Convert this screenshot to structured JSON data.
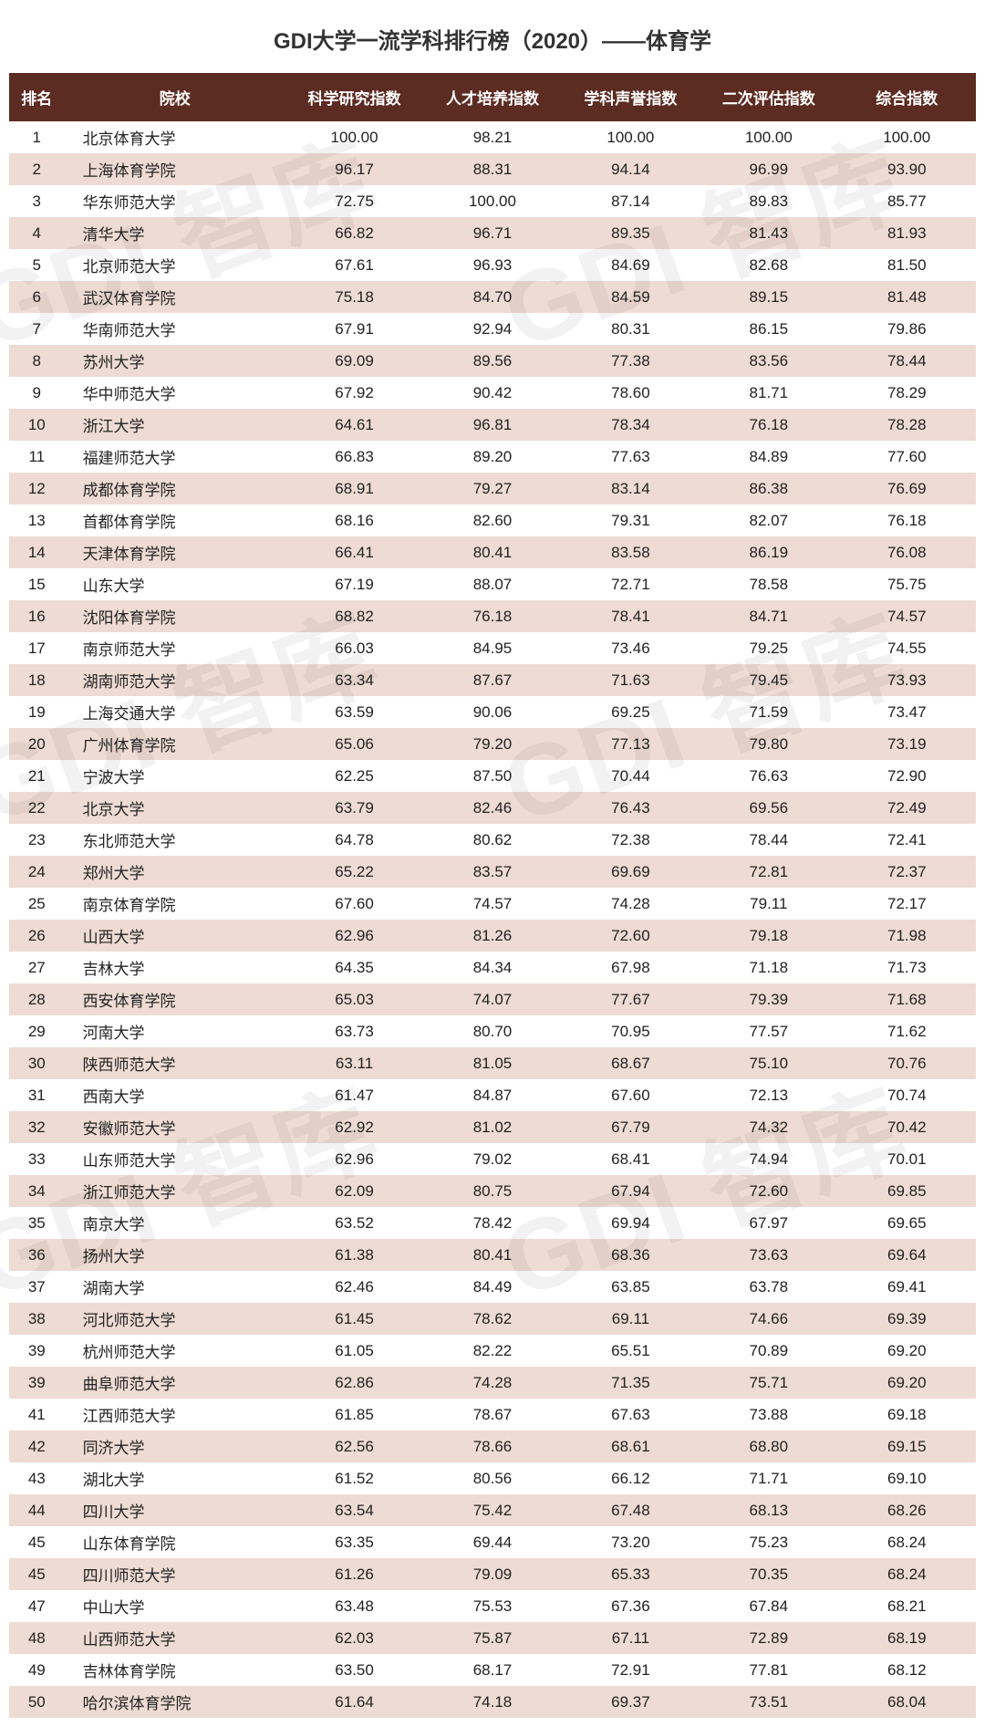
{
  "title": "GDI大学一流学科排行榜（2020）——体育学",
  "watermark_text": "GDI 智库",
  "colors": {
    "header_bg": "#5c2b22",
    "row_even_bg": "#eedbd3",
    "row_odd_bg": "#ffffff"
  },
  "table": {
    "columns": [
      "排名",
      "院校",
      "科学研究指数",
      "人才培养指数",
      "学科声誉指数",
      "二次评估指数",
      "综合指数"
    ],
    "rows": [
      [
        "1",
        "北京体育大学",
        "100.00",
        "98.21",
        "100.00",
        "100.00",
        "100.00"
      ],
      [
        "2",
        "上海体育学院",
        "96.17",
        "88.31",
        "94.14",
        "96.99",
        "93.90"
      ],
      [
        "3",
        "华东师范大学",
        "72.75",
        "100.00",
        "87.14",
        "89.83",
        "85.77"
      ],
      [
        "4",
        "清华大学",
        "66.82",
        "96.71",
        "89.35",
        "81.43",
        "81.93"
      ],
      [
        "5",
        "北京师范大学",
        "67.61",
        "96.93",
        "84.69",
        "82.68",
        "81.50"
      ],
      [
        "6",
        "武汉体育学院",
        "75.18",
        "84.70",
        "84.59",
        "89.15",
        "81.48"
      ],
      [
        "7",
        "华南师范大学",
        "67.91",
        "92.94",
        "80.31",
        "86.15",
        "79.86"
      ],
      [
        "8",
        "苏州大学",
        "69.09",
        "89.56",
        "77.38",
        "83.56",
        "78.44"
      ],
      [
        "9",
        "华中师范大学",
        "67.92",
        "90.42",
        "78.60",
        "81.71",
        "78.29"
      ],
      [
        "10",
        "浙江大学",
        "64.61",
        "96.81",
        "78.34",
        "76.18",
        "78.28"
      ],
      [
        "11",
        "福建师范大学",
        "66.83",
        "89.20",
        "77.63",
        "84.89",
        "77.60"
      ],
      [
        "12",
        "成都体育学院",
        "68.91",
        "79.27",
        "83.14",
        "86.38",
        "76.69"
      ],
      [
        "13",
        "首都体育学院",
        "68.16",
        "82.60",
        "79.31",
        "82.07",
        "76.18"
      ],
      [
        "14",
        "天津体育学院",
        "66.41",
        "80.41",
        "83.58",
        "86.19",
        "76.08"
      ],
      [
        "15",
        "山东大学",
        "67.19",
        "88.07",
        "72.71",
        "78.58",
        "75.75"
      ],
      [
        "16",
        "沈阳体育学院",
        "68.82",
        "76.18",
        "78.41",
        "84.71",
        "74.57"
      ],
      [
        "17",
        "南京师范大学",
        "66.03",
        "84.95",
        "73.46",
        "79.25",
        "74.55"
      ],
      [
        "18",
        "湖南师范大学",
        "63.34",
        "87.67",
        "71.63",
        "79.45",
        "73.93"
      ],
      [
        "19",
        "上海交通大学",
        "63.59",
        "90.06",
        "69.25",
        "71.59",
        "73.47"
      ],
      [
        "20",
        "广州体育学院",
        "65.06",
        "79.20",
        "77.13",
        "79.80",
        "73.19"
      ],
      [
        "21",
        "宁波大学",
        "62.25",
        "87.50",
        "70.44",
        "76.63",
        "72.90"
      ],
      [
        "22",
        "北京大学",
        "63.79",
        "82.46",
        "76.43",
        "69.56",
        "72.49"
      ],
      [
        "23",
        "东北师范大学",
        "64.78",
        "80.62",
        "72.38",
        "78.44",
        "72.41"
      ],
      [
        "24",
        "郑州大学",
        "65.22",
        "83.57",
        "69.69",
        "72.81",
        "72.37"
      ],
      [
        "25",
        "南京体育学院",
        "67.60",
        "74.57",
        "74.28",
        "79.11",
        "72.17"
      ],
      [
        "26",
        "山西大学",
        "62.96",
        "81.26",
        "72.60",
        "79.18",
        "71.98"
      ],
      [
        "27",
        "吉林大学",
        "64.35",
        "84.34",
        "67.98",
        "71.18",
        "71.73"
      ],
      [
        "28",
        "西安体育学院",
        "65.03",
        "74.07",
        "77.67",
        "79.39",
        "71.68"
      ],
      [
        "29",
        "河南大学",
        "63.73",
        "80.70",
        "70.95",
        "77.57",
        "71.62"
      ],
      [
        "30",
        "陕西师范大学",
        "63.11",
        "81.05",
        "68.67",
        "75.10",
        "70.76"
      ],
      [
        "31",
        "西南大学",
        "61.47",
        "84.87",
        "67.60",
        "72.13",
        "70.74"
      ],
      [
        "32",
        "安徽师范大学",
        "62.92",
        "81.02",
        "67.79",
        "74.32",
        "70.42"
      ],
      [
        "33",
        "山东师范大学",
        "62.96",
        "79.02",
        "68.41",
        "74.94",
        "70.01"
      ],
      [
        "34",
        "浙江师范大学",
        "62.09",
        "80.75",
        "67.94",
        "72.60",
        "69.85"
      ],
      [
        "35",
        "南京大学",
        "63.52",
        "78.42",
        "69.94",
        "67.97",
        "69.65"
      ],
      [
        "36",
        "扬州大学",
        "61.38",
        "80.41",
        "68.36",
        "73.63",
        "69.64"
      ],
      [
        "37",
        "湖南大学",
        "62.46",
        "84.49",
        "63.85",
        "63.78",
        "69.41"
      ],
      [
        "38",
        "河北师范大学",
        "61.45",
        "78.62",
        "69.11",
        "74.66",
        "69.39"
      ],
      [
        "39",
        "杭州师范大学",
        "61.05",
        "82.22",
        "65.51",
        "70.89",
        "69.20"
      ],
      [
        "39",
        "曲阜师范大学",
        "62.86",
        "74.28",
        "71.35",
        "75.71",
        "69.20"
      ],
      [
        "41",
        "江西师范大学",
        "61.85",
        "78.67",
        "67.63",
        "73.88",
        "69.18"
      ],
      [
        "42",
        "同济大学",
        "62.56",
        "78.66",
        "68.61",
        "68.80",
        "69.15"
      ],
      [
        "43",
        "湖北大学",
        "61.52",
        "80.56",
        "66.12",
        "71.71",
        "69.10"
      ],
      [
        "44",
        "四川大学",
        "63.54",
        "75.42",
        "67.48",
        "68.13",
        "68.26"
      ],
      [
        "45",
        "山东体育学院",
        "63.35",
        "69.44",
        "73.20",
        "75.23",
        "68.24"
      ],
      [
        "45",
        "四川师范大学",
        "61.26",
        "79.09",
        "65.33",
        "70.35",
        "68.24"
      ],
      [
        "47",
        "中山大学",
        "63.48",
        "75.53",
        "67.36",
        "67.84",
        "68.21"
      ],
      [
        "48",
        "山西师范大学",
        "62.03",
        "75.87",
        "67.11",
        "72.89",
        "68.19"
      ],
      [
        "49",
        "吉林体育学院",
        "63.50",
        "68.17",
        "72.91",
        "77.81",
        "68.12"
      ],
      [
        "50",
        "哈尔滨体育学院",
        "61.64",
        "74.18",
        "69.37",
        "73.51",
        "68.04"
      ]
    ]
  }
}
